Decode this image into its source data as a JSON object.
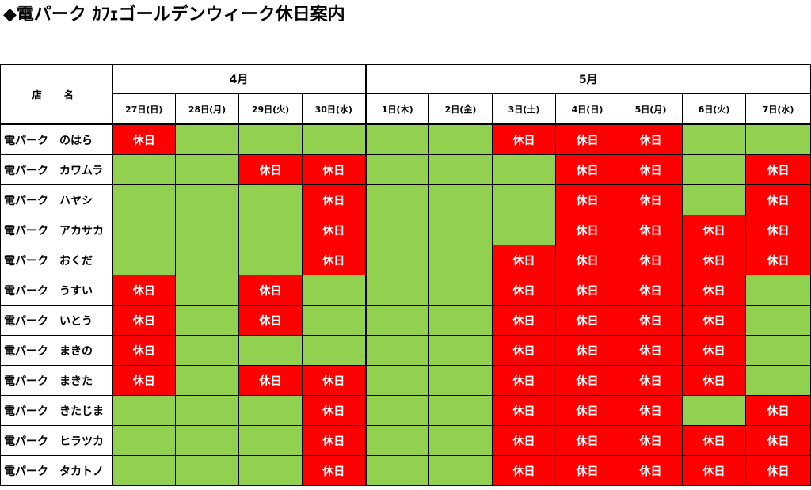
{
  "title": "◆電パーク ｶﾌｪゴールデンウィーク休日案内",
  "header": {
    "store_label": "店　名",
    "months": [
      "4月",
      "5月"
    ],
    "days": [
      "27日(日)",
      "28日(月)",
      "29日(火)",
      "30日(水)",
      "1日(木)",
      "2日(金)",
      "3日(土)",
      "4日(日)",
      "5日(月)",
      "6日(火)",
      "7日(水)"
    ]
  },
  "closed_label": "休日",
  "colors": {
    "open": "#92d050",
    "closed": "#ff0000"
  },
  "stores": [
    {
      "name": "電パーク　のはら",
      "closed": [
        1,
        0,
        0,
        0,
        0,
        0,
        1,
        1,
        1,
        0,
        0
      ]
    },
    {
      "name": "電パーク　カワムラ",
      "closed": [
        0,
        0,
        1,
        1,
        0,
        0,
        0,
        1,
        1,
        0,
        1
      ]
    },
    {
      "name": "電パーク　ハヤシ",
      "closed": [
        0,
        0,
        0,
        1,
        0,
        0,
        0,
        1,
        1,
        0,
        1
      ]
    },
    {
      "name": "電パーク　アカサカ",
      "closed": [
        0,
        0,
        0,
        1,
        0,
        0,
        0,
        1,
        1,
        1,
        1
      ]
    },
    {
      "name": "電パーク　おくだ",
      "closed": [
        0,
        0,
        0,
        1,
        0,
        0,
        1,
        1,
        1,
        1,
        1
      ]
    },
    {
      "name": "電パーク　うすい",
      "closed": [
        1,
        0,
        1,
        0,
        0,
        0,
        1,
        1,
        1,
        1,
        0
      ]
    },
    {
      "name": "電パーク　いとう",
      "closed": [
        1,
        0,
        1,
        0,
        0,
        0,
        1,
        1,
        1,
        1,
        0
      ]
    },
    {
      "name": "電パーク　まきの",
      "closed": [
        1,
        0,
        0,
        0,
        0,
        0,
        1,
        1,
        1,
        1,
        0
      ]
    },
    {
      "name": "電パーク　まきた",
      "closed": [
        1,
        0,
        1,
        1,
        0,
        0,
        1,
        1,
        1,
        1,
        0
      ]
    },
    {
      "name": "電パーク　きたじま",
      "closed": [
        0,
        0,
        0,
        1,
        0,
        0,
        1,
        1,
        1,
        0,
        1
      ]
    },
    {
      "name": "電パーク　ヒラツカ",
      "closed": [
        0,
        0,
        0,
        1,
        0,
        0,
        1,
        1,
        1,
        1,
        1
      ]
    },
    {
      "name": "電パーク　タカトノ",
      "closed": [
        0,
        0,
        0,
        1,
        0,
        0,
        1,
        1,
        1,
        1,
        1
      ]
    }
  ]
}
